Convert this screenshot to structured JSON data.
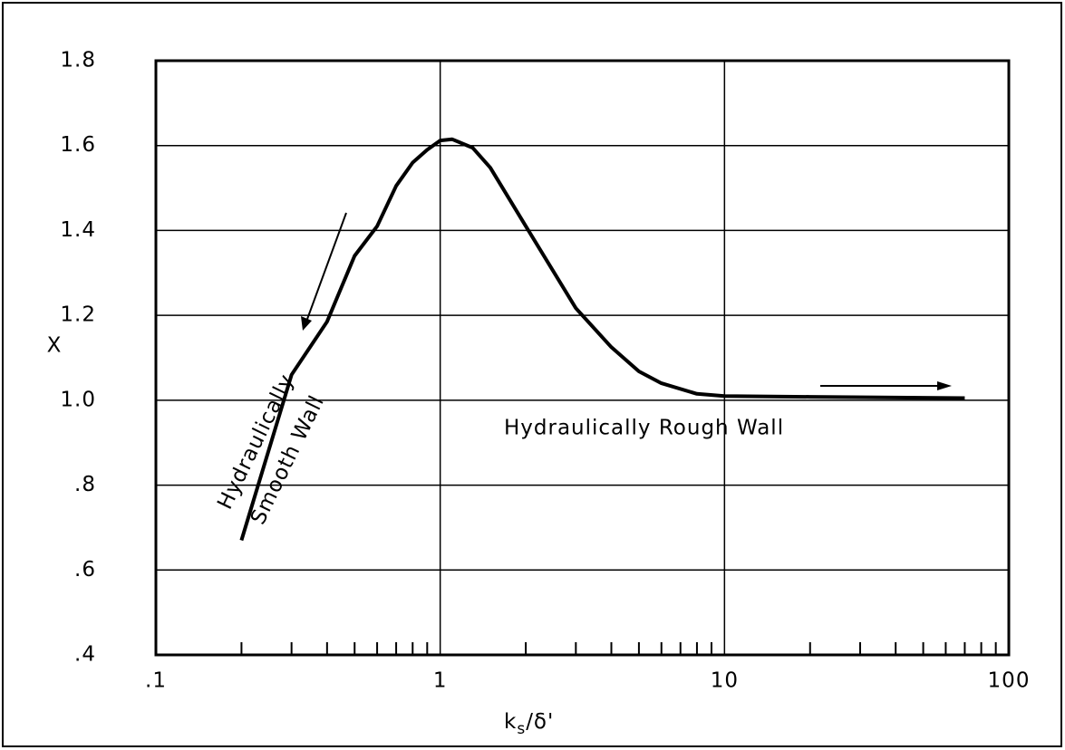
{
  "chart_data": {
    "type": "line",
    "x_label": [
      "k",
      "s",
      "/δ'"
    ],
    "y_label": "X",
    "log_x": true,
    "grid": true,
    "color": "#000000",
    "x": [
      0.2,
      0.3,
      0.4,
      0.5,
      0.6,
      0.7,
      0.8,
      0.9,
      1.0,
      1.1,
      1.3,
      1.5,
      2,
      3,
      4,
      5,
      6,
      8,
      10,
      20,
      70
    ],
    "values": [
      0.67,
      1.06,
      1.185,
      1.34,
      1.41,
      1.505,
      1.56,
      1.59,
      1.612,
      1.615,
      1.595,
      1.548,
      1.41,
      1.217,
      1.125,
      1.068,
      1.04,
      1.015,
      1.01,
      1.008,
      1.005
    ],
    "xlim": [
      0.1,
      100
    ],
    "ylim": [
      0.4,
      1.8
    ],
    "xticks": [
      {
        "value": 0.1,
        "label": ".1"
      },
      1,
      10,
      100
    ],
    "xminor_ticks": [
      0.2,
      0.3,
      0.4,
      0.5,
      0.6,
      0.7,
      0.8,
      0.9,
      2,
      3,
      4,
      5,
      6,
      7,
      8,
      9,
      20,
      30,
      40,
      50,
      60,
      70,
      80,
      90
    ],
    "yticks": [
      {
        "value": 0.4,
        "label": ".4"
      },
      {
        "value": 0.6,
        "label": ".6"
      },
      {
        "value": 0.8,
        "label": ".8"
      },
      {
        "value": 1.0,
        "label": "1.0"
      },
      1.2,
      1.4,
      1.6,
      1.8
    ],
    "annotations": [
      "Hydraulically",
      "Smooth Wall",
      "Hydraulically Rough Wall"
    ]
  }
}
